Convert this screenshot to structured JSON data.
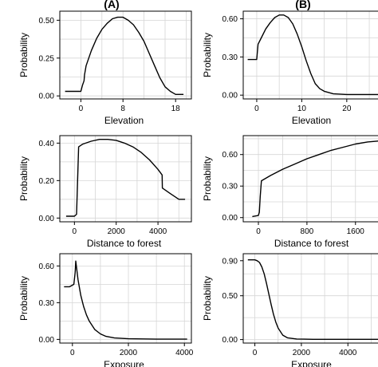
{
  "panel_labels": [
    "(A)",
    "(B)"
  ],
  "chart_data": [
    {
      "id": "A-elevation",
      "type": "line",
      "ylabel": "Probability",
      "xlabel": "Elevation",
      "xlim": [
        -4,
        21
      ],
      "ylim": [
        -0.02,
        0.56
      ],
      "xticks": [
        0,
        8,
        18
      ],
      "yticks": [
        0.0,
        0.25,
        0.5
      ],
      "ytick_labels": [
        "0.00",
        "0.25",
        "0.50"
      ],
      "series": [
        {
          "x": [
            -3,
            -1,
            0,
            0.3,
            0.6,
            0.7,
            1,
            2,
            3,
            4,
            5,
            6,
            7,
            8,
            9,
            10,
            11,
            12,
            13,
            14,
            15,
            16,
            17,
            18,
            19.5
          ],
          "y": [
            0.03,
            0.03,
            0.03,
            0.07,
            0.1,
            0.14,
            0.2,
            0.3,
            0.38,
            0.44,
            0.48,
            0.51,
            0.52,
            0.52,
            0.5,
            0.47,
            0.42,
            0.36,
            0.28,
            0.2,
            0.12,
            0.06,
            0.03,
            0.01,
            0.01
          ]
        }
      ]
    },
    {
      "id": "B-elevation",
      "type": "line",
      "ylabel": "Probability",
      "xlabel": "Elevation",
      "xlim": [
        -3,
        28
      ],
      "ylim": [
        -0.03,
        0.66
      ],
      "xticks": [
        0,
        10,
        20
      ],
      "yticks": [
        0.0,
        0.3,
        0.6
      ],
      "ytick_labels": [
        "0.00",
        "0.30",
        "0.60"
      ],
      "series": [
        {
          "x": [
            -2,
            -1,
            0,
            0.3,
            1,
            2,
            3,
            4,
            5,
            6,
            7,
            8,
            9,
            10,
            11,
            12,
            13,
            14,
            15,
            17,
            20,
            24,
            28
          ],
          "y": [
            0.28,
            0.28,
            0.28,
            0.4,
            0.45,
            0.52,
            0.57,
            0.61,
            0.63,
            0.63,
            0.61,
            0.56,
            0.48,
            0.38,
            0.27,
            0.17,
            0.09,
            0.05,
            0.03,
            0.01,
            0.005,
            0.005,
            0.005
          ]
        }
      ]
    },
    {
      "id": "A-distance",
      "type": "line",
      "ylabel": "Probability",
      "xlabel": "Distance to forest",
      "xlim": [
        -700,
        5600
      ],
      "ylim": [
        -0.02,
        0.44
      ],
      "xticks": [
        0,
        2000,
        4000
      ],
      "yticks": [
        0.0,
        0.2,
        0.4
      ],
      "ytick_labels": [
        "0.00",
        "0.20",
        "0.40"
      ],
      "series": [
        {
          "x": [
            -400,
            0,
            100,
            150,
            200,
            400,
            800,
            1200,
            1600,
            2000,
            2400,
            2800,
            3200,
            3600,
            4000,
            4200,
            4210,
            4600,
            5000,
            5300
          ],
          "y": [
            0.01,
            0.01,
            0.02,
            0.2,
            0.38,
            0.395,
            0.41,
            0.42,
            0.42,
            0.415,
            0.4,
            0.38,
            0.35,
            0.31,
            0.26,
            0.23,
            0.16,
            0.13,
            0.1,
            0.1
          ]
        }
      ]
    },
    {
      "id": "B-distance",
      "type": "line",
      "ylabel": "Probability",
      "xlabel": "Distance to forest",
      "xlim": [
        -250,
        2050
      ],
      "ylim": [
        -0.04,
        0.78
      ],
      "xticks": [
        0,
        800,
        1600
      ],
      "yticks": [
        0.0,
        0.3,
        0.6
      ],
      "ytick_labels": [
        "0.00",
        "0.30",
        "0.60"
      ],
      "series": [
        {
          "x": [
            -100,
            0,
            15,
            30,
            50,
            200,
            400,
            600,
            800,
            1000,
            1200,
            1400,
            1600,
            1800,
            2000
          ],
          "y": [
            0.01,
            0.02,
            0.05,
            0.2,
            0.35,
            0.4,
            0.46,
            0.51,
            0.56,
            0.6,
            0.64,
            0.67,
            0.7,
            0.72,
            0.73
          ]
        }
      ]
    },
    {
      "id": "A-exposure",
      "type": "line",
      "ylabel": "Probability",
      "xlabel": "Exposure",
      "xlim": [
        -450,
        4250
      ],
      "ylim": [
        -0.03,
        0.7
      ],
      "xticks": [
        0,
        2000,
        4000
      ],
      "yticks": [
        0.0,
        0.3,
        0.6
      ],
      "ytick_labels": [
        "0.00",
        "0.30",
        "0.60"
      ],
      "series": [
        {
          "x": [
            -300,
            -100,
            50,
            100,
            120,
            200,
            300,
            400,
            500,
            600,
            800,
            1000,
            1200,
            1500,
            2000,
            3000,
            4100
          ],
          "y": [
            0.43,
            0.43,
            0.45,
            0.55,
            0.64,
            0.49,
            0.36,
            0.27,
            0.2,
            0.15,
            0.08,
            0.045,
            0.025,
            0.012,
            0.005,
            0.002,
            0.002
          ]
        }
      ]
    },
    {
      "id": "B-exposure",
      "type": "line",
      "ylabel": "Probability",
      "xlabel": "Exposure",
      "xlim": [
        -500,
        5500
      ],
      "ylim": [
        -0.04,
        0.98
      ],
      "xticks": [
        0,
        2000,
        4000
      ],
      "yticks": [
        0.0,
        0.5,
        0.9
      ],
      "ytick_labels": [
        "0.00",
        "0.50",
        "0.90"
      ],
      "series": [
        {
          "x": [
            -300,
            0,
            100,
            200,
            300,
            400,
            500,
            600,
            700,
            800,
            900,
            1000,
            1200,
            1400,
            1800,
            2500,
            3500,
            5500
          ],
          "y": [
            0.91,
            0.91,
            0.9,
            0.88,
            0.83,
            0.75,
            0.64,
            0.52,
            0.4,
            0.29,
            0.2,
            0.13,
            0.05,
            0.02,
            0.006,
            0.003,
            0.003,
            0.003
          ]
        }
      ]
    }
  ]
}
